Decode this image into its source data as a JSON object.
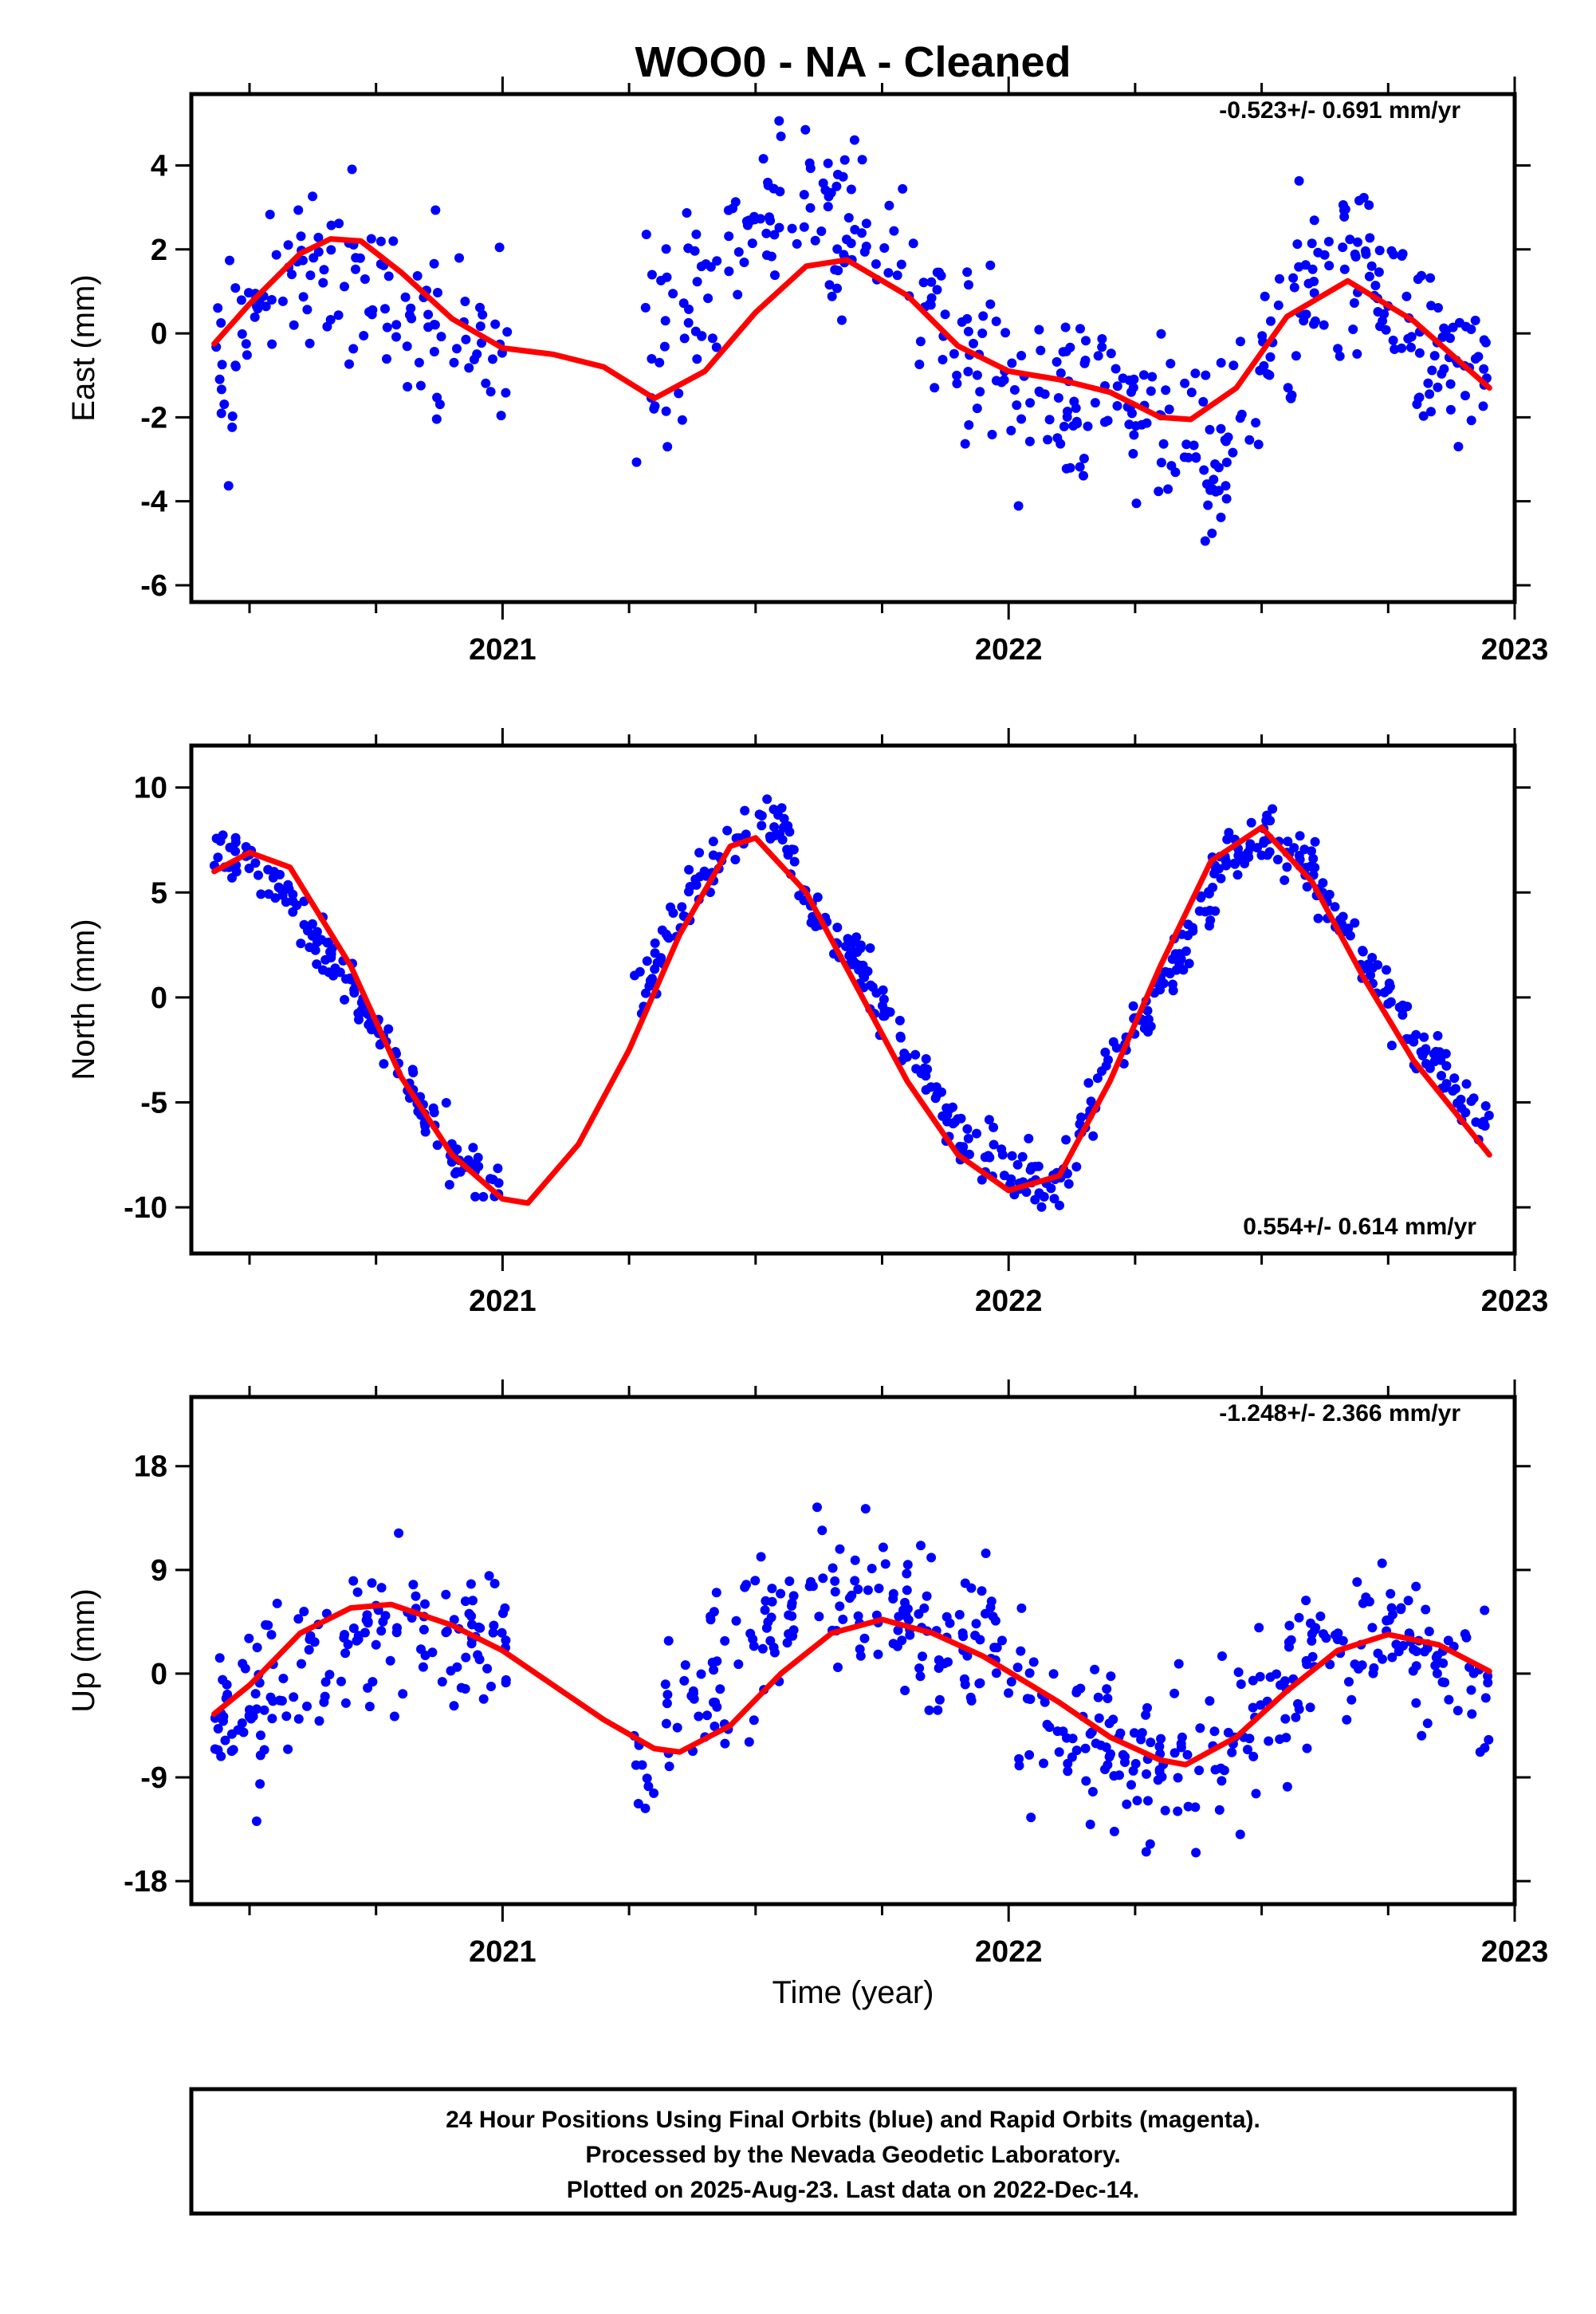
{
  "title": "WOO0  - NA - Cleaned",
  "colors": {
    "data": "#0000ff",
    "model": "#ff0000",
    "frame": "#000000"
  },
  "xlabel": "Time (year)",
  "footer": {
    "line1": "24 Hour Positions Using Final Orbits (blue) and Rapid Orbits (magenta).",
    "line2": "Processed by the Nevada Geodetic Laboratory.",
    "line3": "Plotted on 2025-Aug-23. Last data on 2022-Dec-14."
  },
  "chart_data": [
    {
      "type": "scatter",
      "component": "east",
      "ylabel": "East (mm)",
      "rate": "-0.523+/- 0.691 mm/yr",
      "xlim": [
        2020.385,
        2023.0
      ],
      "ylim": [
        -6.4,
        5.7
      ],
      "xticks": [
        2021,
        2022,
        2023
      ],
      "yticks": [
        -6,
        -4,
        -2,
        0,
        2,
        4
      ],
      "series": [
        {
          "role": "daily positions (blue)",
          "gaps": [
            [
              2021.01,
              2021.26
            ]
          ],
          "anchors": [
            [
              2020.43,
              -0.4
            ],
            [
              2020.5,
              0.0
            ],
            [
              2020.6,
              1.4
            ],
            [
              2020.7,
              1.0
            ],
            [
              2020.8,
              0.6
            ],
            [
              2020.9,
              0.2
            ],
            [
              2020.98,
              -0.5
            ],
            [
              2021.26,
              -1.2
            ],
            [
              2021.3,
              -0.6
            ],
            [
              2021.4,
              1.2
            ],
            [
              2021.5,
              2.3
            ],
            [
              2021.6,
              2.9
            ],
            [
              2021.7,
              2.6
            ],
            [
              2021.8,
              1.3
            ],
            [
              2021.9,
              0.3
            ],
            [
              2022.0,
              -0.8
            ],
            [
              2022.1,
              -1.1
            ],
            [
              2022.2,
              -1.3
            ],
            [
              2022.3,
              -2.1
            ],
            [
              2022.4,
              -3.0
            ],
            [
              2022.5,
              -1.0
            ],
            [
              2022.6,
              1.6
            ],
            [
              2022.7,
              1.5
            ],
            [
              2022.8,
              0.1
            ],
            [
              2022.95,
              -0.9
            ]
          ],
          "scatter": 1.3,
          "count": 560
        },
        {
          "role": "model fit (red)",
          "line": [
            [
              2020.43,
              -0.25
            ],
            [
              2020.5,
              0.7
            ],
            [
              2020.6,
              1.9
            ],
            [
              2020.66,
              2.25
            ],
            [
              2020.72,
              2.2
            ],
            [
              2020.8,
              1.45
            ],
            [
              2020.9,
              0.35
            ],
            [
              2021.0,
              -0.35
            ],
            [
              2021.1,
              -0.5
            ],
            [
              2021.2,
              -0.8
            ],
            [
              2021.3,
              -1.55
            ],
            [
              2021.4,
              -0.9
            ],
            [
              2021.5,
              0.5
            ],
            [
              2021.6,
              1.6
            ],
            [
              2021.68,
              1.75
            ],
            [
              2021.8,
              0.9
            ],
            [
              2021.9,
              -0.3
            ],
            [
              2022.0,
              -0.9
            ],
            [
              2022.1,
              -1.1
            ],
            [
              2022.2,
              -1.4
            ],
            [
              2022.3,
              -2.0
            ],
            [
              2022.36,
              -2.05
            ],
            [
              2022.45,
              -1.3
            ],
            [
              2022.55,
              0.4
            ],
            [
              2022.67,
              1.25
            ],
            [
              2022.8,
              0.3
            ],
            [
              2022.95,
              -1.3
            ]
          ]
        }
      ]
    },
    {
      "type": "scatter",
      "component": "north",
      "ylabel": "North (mm)",
      "rate": "0.554+/- 0.614 mm/yr",
      "xlim": [
        2020.385,
        2023.0
      ],
      "ylim": [
        -12.2,
        12.0
      ],
      "xticks": [
        2021,
        2022,
        2023
      ],
      "yticks": [
        -10,
        -5,
        0,
        5,
        10
      ],
      "series": [
        {
          "role": "daily positions (blue)",
          "gaps": [
            [
              2021.01,
              2021.26
            ]
          ],
          "anchors": [
            [
              2020.43,
              7.0
            ],
            [
              2020.5,
              6.5
            ],
            [
              2020.6,
              4.3
            ],
            [
              2020.7,
              0.3
            ],
            [
              2020.8,
              -3.6
            ],
            [
              2020.9,
              -7.6
            ],
            [
              2020.98,
              -9.0
            ],
            [
              2021.26,
              0.0
            ],
            [
              2021.3,
              1.5
            ],
            [
              2021.4,
              6.0
            ],
            [
              2021.5,
              8.8
            ],
            [
              2021.55,
              8.0
            ],
            [
              2021.6,
              4.5
            ],
            [
              2021.7,
              1.8
            ],
            [
              2021.8,
              -2.5
            ],
            [
              2021.9,
              -6.5
            ],
            [
              2022.0,
              -8.2
            ],
            [
              2022.1,
              -9.2
            ],
            [
              2022.2,
              -3.0
            ],
            [
              2022.3,
              0.0
            ],
            [
              2022.4,
              5.0
            ],
            [
              2022.5,
              8.0
            ],
            [
              2022.6,
              6.0
            ],
            [
              2022.7,
              2.0
            ],
            [
              2022.8,
              -2.0
            ],
            [
              2022.95,
              -6.5
            ]
          ],
          "scatter": 0.9,
          "count": 620
        },
        {
          "role": "model fit (red)",
          "line": [
            [
              2020.43,
              6.0
            ],
            [
              2020.5,
              6.9
            ],
            [
              2020.58,
              6.2
            ],
            [
              2020.7,
              1.5
            ],
            [
              2020.8,
              -3.8
            ],
            [
              2020.9,
              -7.5
            ],
            [
              2021.0,
              -9.6
            ],
            [
              2021.05,
              -9.8
            ],
            [
              2021.15,
              -7.0
            ],
            [
              2021.25,
              -2.5
            ],
            [
              2021.35,
              3.0
            ],
            [
              2021.45,
              7.2
            ],
            [
              2021.5,
              7.6
            ],
            [
              2021.6,
              5.0
            ],
            [
              2021.7,
              0.5
            ],
            [
              2021.8,
              -4.0
            ],
            [
              2021.9,
              -7.5
            ],
            [
              2022.0,
              -9.2
            ],
            [
              2022.1,
              -8.5
            ],
            [
              2022.2,
              -4.0
            ],
            [
              2022.3,
              1.5
            ],
            [
              2022.4,
              6.5
            ],
            [
              2022.5,
              8.1
            ],
            [
              2022.6,
              5.5
            ],
            [
              2022.7,
              1.0
            ],
            [
              2022.8,
              -3.0
            ],
            [
              2022.95,
              -7.5
            ]
          ]
        }
      ]
    },
    {
      "type": "scatter",
      "component": "up",
      "ylabel": "Up (mm)",
      "rate": "-1.248+/- 2.366 mm/yr",
      "xlim": [
        2020.385,
        2023.0
      ],
      "ylim": [
        -20.0,
        24.0
      ],
      "xticks": [
        2021,
        2022,
        2023
      ],
      "yticks": [
        -18,
        -9,
        0,
        9,
        18
      ],
      "series": [
        {
          "role": "daily positions (blue)",
          "gaps": [
            [
              2021.01,
              2021.26
            ]
          ],
          "anchors": [
            [
              2020.43,
              -6.0
            ],
            [
              2020.5,
              -2.0
            ],
            [
              2020.6,
              1.0
            ],
            [
              2020.7,
              3.5
            ],
            [
              2020.8,
              4.5
            ],
            [
              2020.9,
              4.0
            ],
            [
              2020.98,
              3.0
            ],
            [
              2021.26,
              -7.0
            ],
            [
              2021.35,
              -4.0
            ],
            [
              2021.45,
              1.0
            ],
            [
              2021.55,
              4.0
            ],
            [
              2021.65,
              8.0
            ],
            [
              2021.75,
              7.0
            ],
            [
              2021.85,
              4.0
            ],
            [
              2021.95,
              1.5
            ],
            [
              2022.1,
              -5.0
            ],
            [
              2022.2,
              -6.0
            ],
            [
              2022.3,
              -8.0
            ],
            [
              2022.4,
              -8.0
            ],
            [
              2022.5,
              -3.0
            ],
            [
              2022.6,
              0.0
            ],
            [
              2022.7,
              3.0
            ],
            [
              2022.8,
              2.0
            ],
            [
              2022.95,
              -2.0
            ]
          ],
          "scatter": 4.5,
          "count": 580
        },
        {
          "role": "model fit (red)",
          "line": [
            [
              2020.43,
              -3.5
            ],
            [
              2020.5,
              -1.0
            ],
            [
              2020.6,
              3.5
            ],
            [
              2020.7,
              5.7
            ],
            [
              2020.78,
              6.0
            ],
            [
              2020.9,
              4.2
            ],
            [
              2021.0,
              2.0
            ],
            [
              2021.1,
              -1.0
            ],
            [
              2021.2,
              -4.0
            ],
            [
              2021.3,
              -6.5
            ],
            [
              2021.35,
              -6.8
            ],
            [
              2021.45,
              -4.5
            ],
            [
              2021.55,
              0.0
            ],
            [
              2021.65,
              3.5
            ],
            [
              2021.75,
              4.7
            ],
            [
              2021.85,
              3.5
            ],
            [
              2021.95,
              1.5
            ],
            [
              2022.1,
              -2.5
            ],
            [
              2022.2,
              -5.5
            ],
            [
              2022.3,
              -7.5
            ],
            [
              2022.35,
              -7.9
            ],
            [
              2022.45,
              -5.5
            ],
            [
              2022.55,
              -1.5
            ],
            [
              2022.65,
              2.0
            ],
            [
              2022.75,
              3.4
            ],
            [
              2022.85,
              2.5
            ],
            [
              2022.95,
              0.2
            ]
          ]
        }
      ]
    }
  ]
}
